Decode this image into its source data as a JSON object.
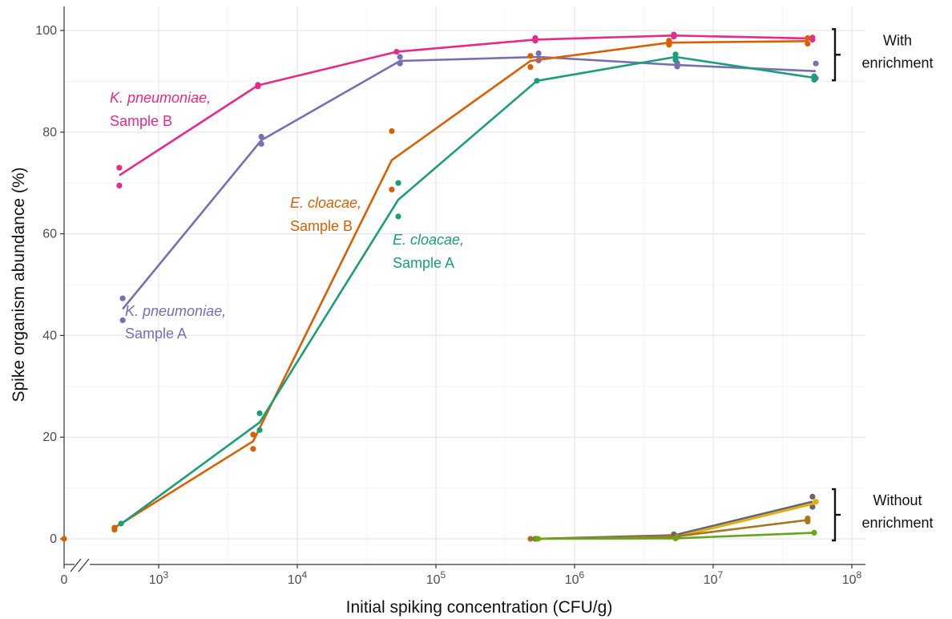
{
  "chart_data": {
    "type": "line",
    "xlabel": "Initial spiking concentration (CFU/g)",
    "ylabel": "Spike organism abundance (%)",
    "x_scale": "log10 with axis break at 0",
    "xlim": [
      0,
      100000000
    ],
    "ylim": [
      0,
      100
    ],
    "x_ticks": [
      {
        "value": 0,
        "label": "0"
      },
      {
        "value": 1000,
        "base": "10",
        "exp": "3"
      },
      {
        "value": 10000,
        "base": "10",
        "exp": "4"
      },
      {
        "value": 100000,
        "base": "10",
        "exp": "5"
      },
      {
        "value": 1000000,
        "base": "10",
        "exp": "6"
      },
      {
        "value": 10000000,
        "base": "10",
        "exp": "7"
      },
      {
        "value": 100000000,
        "base": "10",
        "exp": "8"
      }
    ],
    "y_ticks": [
      0,
      20,
      40,
      60,
      80,
      100
    ],
    "grid": true,
    "groups": [
      {
        "label_lines": [
          "With",
          "enrichment"
        ],
        "y_range": [
          90.5,
          99
        ]
      },
      {
        "label_lines": [
          "Without",
          "enrichment"
        ],
        "y_range": [
          0,
          8.5
        ]
      }
    ],
    "series": [
      {
        "name_italic": "K. pneumoniae,",
        "name_rest": "Sample B",
        "color": "#e7298a",
        "x": [
          500,
          5000,
          50000,
          500000,
          5000000,
          50000000
        ],
        "line": [
          71.5,
          89.2,
          95.8,
          98.2,
          99.0,
          98.4
        ],
        "points": [
          [
            500,
            73
          ],
          [
            500,
            69.5
          ],
          [
            5000,
            89
          ],
          [
            5000,
            89.3
          ],
          [
            50000,
            95.8
          ],
          [
            500000,
            98
          ],
          [
            500000,
            98.5
          ],
          [
            5000000,
            99.2
          ],
          [
            5000000,
            98.8
          ],
          [
            50000000,
            98.6
          ],
          [
            50000000,
            98.2
          ]
        ]
      },
      {
        "name_italic": "K. pneumoniae,",
        "name_rest": "Sample A",
        "color": "#7570b3",
        "x": [
          500,
          5000,
          50000,
          500000,
          5000000,
          50000000
        ],
        "line": [
          45.2,
          78.4,
          94.0,
          94.8,
          93.2,
          92.0
        ],
        "points": [
          [
            500,
            47.3
          ],
          [
            500,
            43
          ],
          [
            5000,
            79.1
          ],
          [
            5000,
            77.7
          ],
          [
            50000,
            94.8
          ],
          [
            50000,
            93.5
          ],
          [
            500000,
            95.5
          ],
          [
            500000,
            94.1
          ],
          [
            5000000,
            93.6
          ],
          [
            5000000,
            92.9
          ],
          [
            50000000,
            93.5
          ],
          [
            50000000,
            90.6
          ]
        ]
      },
      {
        "name_italic": "E. cloacae,",
        "name_rest": "Sample B",
        "color": "#d95f02",
        "x": [
          500,
          5000,
          50000,
          500000,
          5000000,
          50000000
        ],
        "line": [
          2.2,
          19.2,
          74.5,
          94.0,
          97.6,
          97.9
        ],
        "points": [
          [
            0,
            0
          ],
          [
            500,
            2.2
          ],
          [
            500,
            1.8
          ],
          [
            5000,
            20.5
          ],
          [
            5000,
            17.7
          ],
          [
            50000,
            80.2
          ],
          [
            50000,
            68.7
          ],
          [
            500000,
            95.0
          ],
          [
            500000,
            92.8
          ],
          [
            5000000,
            98.0
          ],
          [
            5000000,
            97.2
          ],
          [
            50000000,
            98.5
          ],
          [
            50000000,
            97.4
          ]
        ]
      },
      {
        "name_italic": "E. cloacae,",
        "name_rest": "Sample A",
        "color": "#1b9e77",
        "x": [
          500,
          5000,
          50000,
          500000,
          5000000,
          50000000
        ],
        "line": [
          2.9,
          22.9,
          66.7,
          90.1,
          94.8,
          90.7
        ],
        "points": [
          [
            500,
            3.0
          ],
          [
            5000,
            24.7
          ],
          [
            5000,
            21.4
          ],
          [
            50000,
            70.0
          ],
          [
            50000,
            63.4
          ],
          [
            500000,
            90.1
          ],
          [
            5000000,
            95.3
          ],
          [
            5000000,
            94.2
          ],
          [
            50000000,
            91.0
          ],
          [
            50000000,
            90.3
          ]
        ]
      },
      {
        "name": "",
        "color": "#666666",
        "x": [
          500000,
          5000000,
          50000000
        ],
        "line": [
          0,
          0.7,
          7.3
        ],
        "points": [
          [
            500000,
            0
          ],
          [
            5000000,
            0.9
          ],
          [
            50000000,
            8.3
          ],
          [
            50000000,
            6.3
          ]
        ]
      },
      {
        "name": "",
        "color": "#e6ab02",
        "x": [
          500000,
          5000000,
          50000000
        ],
        "line": [
          0,
          0.4,
          7.0
        ],
        "points": [
          [
            500000,
            0
          ],
          [
            5000000,
            0.3
          ],
          [
            50000000,
            7.3
          ]
        ]
      },
      {
        "name": "",
        "color": "#a6761d",
        "x": [
          500000,
          5000000,
          50000000
        ],
        "line": [
          0,
          0.3,
          3.7
        ],
        "points": [
          [
            500000,
            0
          ],
          [
            5000000,
            0.4
          ],
          [
            50000000,
            4.0
          ],
          [
            50000000,
            3.4
          ]
        ]
      },
      {
        "name": "",
        "color": "#66a61e",
        "x": [
          500000,
          5000000,
          50000000
        ],
        "line": [
          0,
          0.1,
          1.2
        ],
        "points": [
          [
            500000,
            0
          ],
          [
            5000000,
            0.1
          ],
          [
            50000000,
            1.2
          ]
        ]
      }
    ]
  }
}
